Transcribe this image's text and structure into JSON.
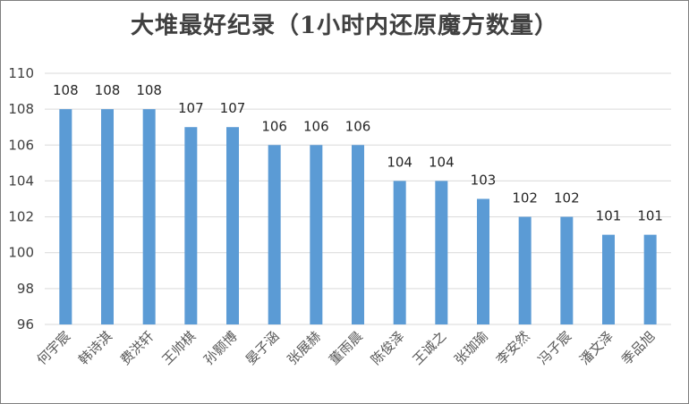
{
  "chart_data": {
    "type": "bar",
    "title": "大堆最好纪录（1小时内还原魔方数量）",
    "categories": [
      "何宇宸",
      "韩诗淇",
      "费洪轩",
      "王帅棋",
      "孙颢博",
      "晏子涵",
      "张展赫",
      "董雨晨",
      "陈俊泽",
      "王诚之",
      "张珈瑜",
      "李安然",
      "冯子宸",
      "潘文泽",
      "季品旭"
    ],
    "values": [
      108,
      108,
      108,
      107,
      107,
      106,
      106,
      106,
      104,
      104,
      103,
      102,
      102,
      101,
      101
    ],
    "data_labels": [
      "108",
      "108",
      "108",
      "107",
      "107",
      "106",
      "106",
      "106",
      "104",
      "104",
      "103",
      "102",
      "102",
      "101",
      "101"
    ],
    "ylim": [
      96,
      110
    ],
    "yticks": [
      96,
      98,
      100,
      102,
      104,
      106,
      108,
      110
    ],
    "ytick_labels": [
      "96",
      "98",
      "100",
      "102",
      "104",
      "106",
      "108",
      "110"
    ],
    "xlabel": "",
    "ylabel": "",
    "grid": true,
    "legend": "none",
    "colors": {
      "bar": "#5b9bd5",
      "grid": "#d9d9d9",
      "text": "#404040"
    }
  }
}
